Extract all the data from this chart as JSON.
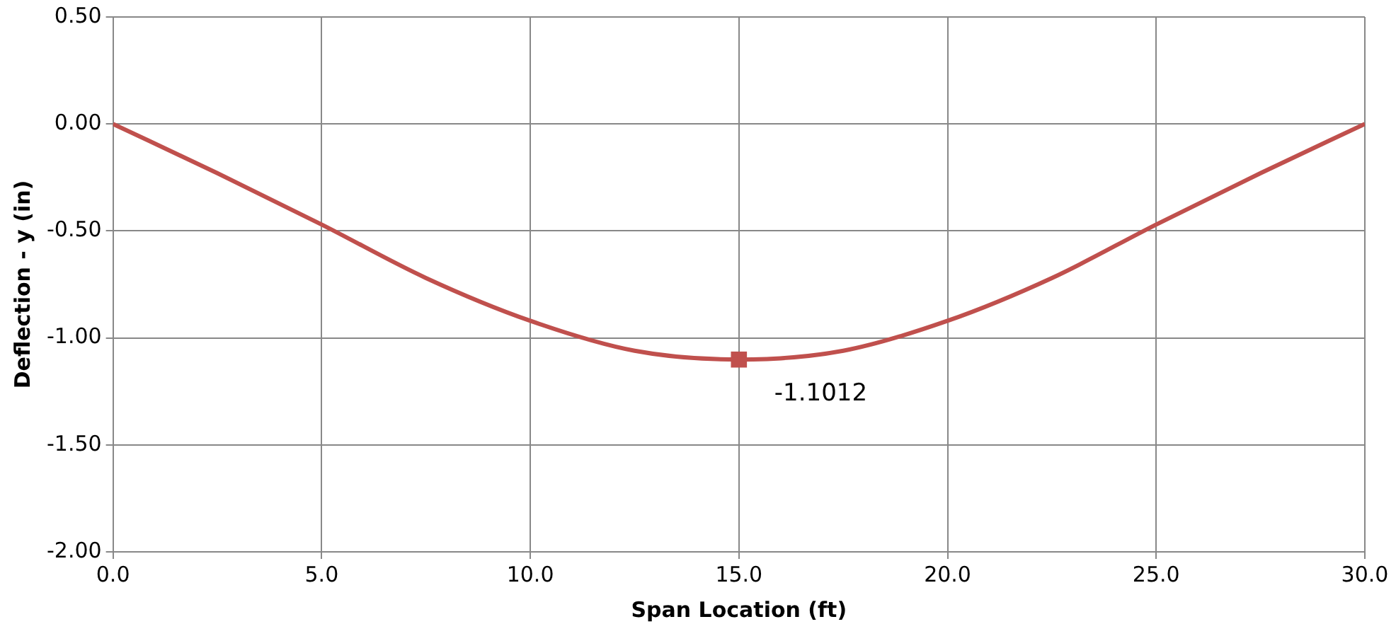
{
  "chart_data": {
    "type": "line",
    "xlabel": "Span Location (ft)",
    "ylabel": "Deflection - y (in)",
    "xlim": [
      0,
      30
    ],
    "xticks": [
      {
        "value": 0,
        "label": "0.0"
      },
      {
        "value": 5,
        "label": "5.0"
      },
      {
        "value": 10,
        "label": "10.0"
      },
      {
        "value": 15,
        "label": "15.0"
      },
      {
        "value": 20,
        "label": "20.0"
      },
      {
        "value": 25,
        "label": "25.0"
      },
      {
        "value": 30,
        "label": "30.0"
      }
    ],
    "ylim": [
      -2,
      0.5
    ],
    "yticks": [
      {
        "value": -2,
        "label": "-2.00"
      },
      {
        "value": -1.5,
        "label": "-1.50"
      },
      {
        "value": -1,
        "label": "-1.00"
      },
      {
        "value": -0.5,
        "label": "-0.50"
      },
      {
        "value": 0,
        "label": "0.00"
      },
      {
        "value": 0.5,
        "label": "0.50"
      }
    ],
    "grid": true,
    "legend": false,
    "series": [
      {
        "color": "#c0504d",
        "marker": "none",
        "x": [
          0,
          2.5,
          5,
          7.5,
          10,
          12.5,
          15,
          17.5,
          20,
          22.5,
          25,
          27.5,
          30
        ],
        "values": [
          0,
          -0.23,
          -0.47,
          -0.72,
          -0.92,
          -1.06,
          -1.1012,
          -1.06,
          -0.92,
          -0.72,
          -0.47,
          -0.23,
          0
        ]
      },
      {
        "type": "scatter",
        "color": "#c0504d",
        "marker": "square",
        "x": [
          15
        ],
        "values": [
          -1.1012
        ]
      }
    ],
    "annotations": [
      {
        "text": "-1.1012",
        "x": 15,
        "y": -1.1012
      }
    ]
  }
}
